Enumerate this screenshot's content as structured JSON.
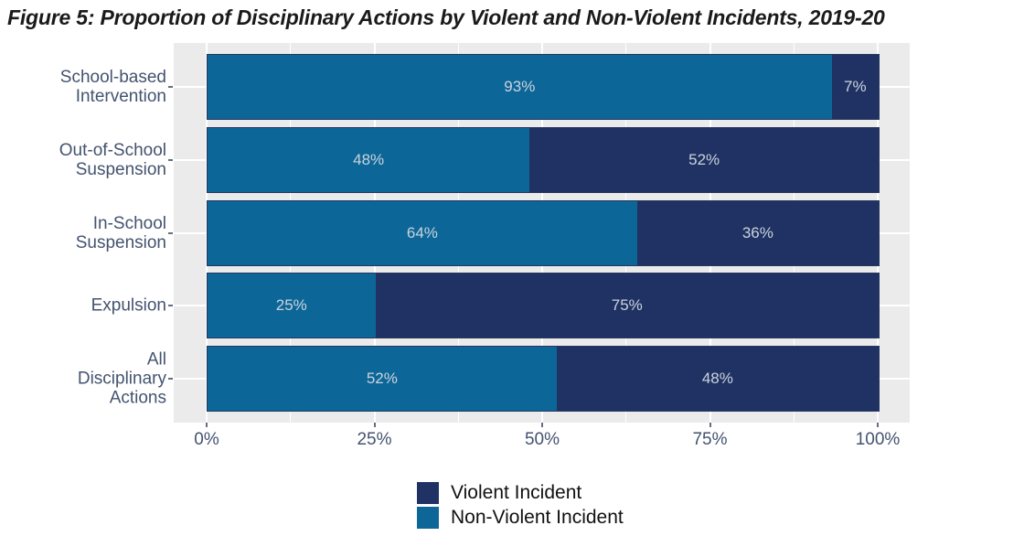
{
  "chart_data": {
    "type": "bar",
    "orientation": "horizontal",
    "stacked": true,
    "stack_unit": "percent",
    "title": "Figure 5: Proportion of Disciplinary Actions by Violent and Non-Violent Incidents, 2019-20",
    "categories": [
      "School-based Intervention",
      "Out-of-School Suspension",
      "In-School Suspension",
      "Expulsion",
      "All Disciplinary Actions"
    ],
    "category_label_lines": [
      [
        "School-based",
        "Intervention"
      ],
      [
        "Out-of-School",
        "Suspension"
      ],
      [
        "In-School",
        "Suspension"
      ],
      [
        "Expulsion"
      ],
      [
        "All",
        "Disciplinary",
        "Actions"
      ]
    ],
    "series": [
      {
        "name": "Non-Violent Incident",
        "color": "#0c6798",
        "values": [
          93,
          48,
          64,
          25,
          52
        ]
      },
      {
        "name": "Violent Incident",
        "color": "#1f3263",
        "values": [
          7,
          52,
          36,
          75,
          48
        ]
      }
    ],
    "value_label_suffix": "%",
    "xlim": [
      0,
      100
    ],
    "x_ticks": [
      {
        "label": "0%",
        "value": 0
      },
      {
        "label": "25%",
        "value": 25
      },
      {
        "label": "50%",
        "value": 50
      },
      {
        "label": "75%",
        "value": 75
      },
      {
        "label": "100%",
        "value": 100
      }
    ],
    "x_minor_ticks": [
      12.5,
      37.5,
      62.5,
      87.5
    ],
    "legend": {
      "position": "bottom",
      "entries": [
        {
          "label": "Violent Incident",
          "color": "#1f3263"
        },
        {
          "label": "Non-Violent Incident",
          "color": "#0c6798"
        }
      ]
    },
    "style": {
      "panel_background": "#ebebeb",
      "grid_color": "#ffffff",
      "axis_text_color": "#44536f",
      "value_label_color": "#ccd3dc",
      "bar_border_color": "#25375f",
      "tick_color": "#666e80",
      "title_color": "#1a1a1a"
    }
  }
}
